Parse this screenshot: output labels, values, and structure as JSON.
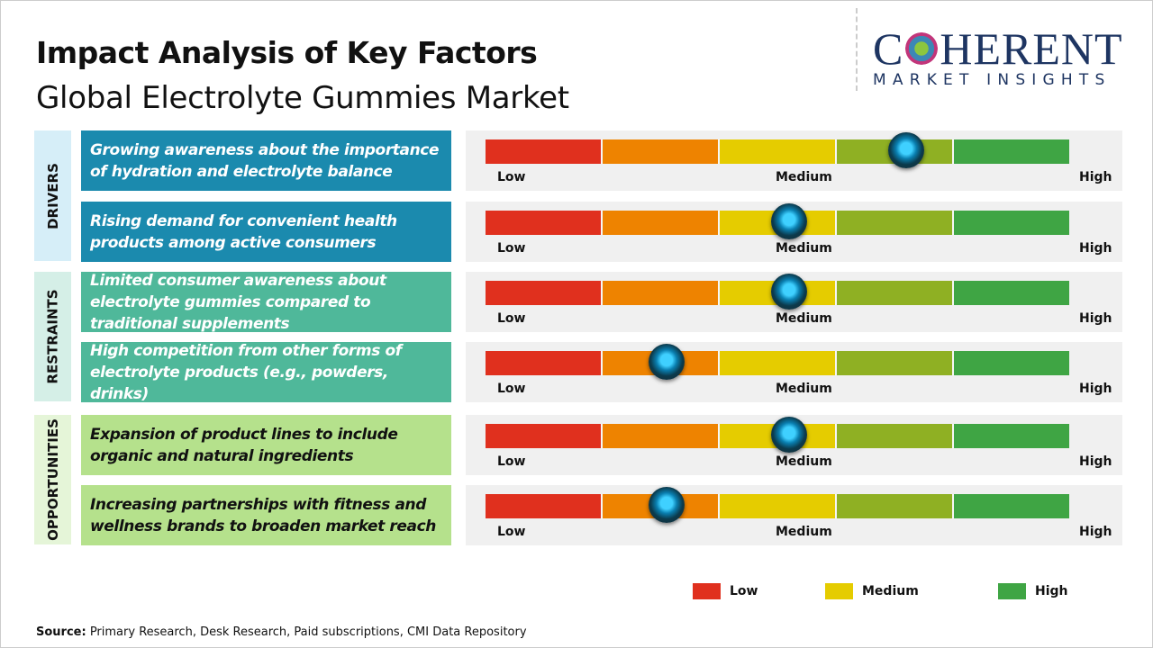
{
  "header": {
    "title": "Impact Analysis of Key Factors",
    "subtitle": "Global Electrolyte Gummies Market"
  },
  "logo": {
    "line1_a": "C",
    "line1_b": "HERENT",
    "line2": "MARKET INSIGHTS"
  },
  "categories": [
    {
      "label": "DRIVERS",
      "bg": "#d6eef8",
      "box": "#1b8aae",
      "text": "#ffffff"
    },
    {
      "label": "RESTRAINTS",
      "bg": "#d5efe7",
      "box": "#4fb89a",
      "text": "#ffffff"
    },
    {
      "label": "OPPORTUNITIES",
      "bg": "#e5f5d8",
      "box": "#b5e18c",
      "text": "#111111"
    }
  ],
  "factors": [
    {
      "text": "Growing awareness about the importance of hydration and electrolyte balance",
      "category": 0,
      "impact": 0.72
    },
    {
      "text": "Rising demand for convenient health products among active consumers",
      "category": 0,
      "impact": 0.52
    },
    {
      "text": "Limited consumer awareness about electrolyte gummies compared to traditional supplements",
      "category": 1,
      "impact": 0.52
    },
    {
      "text": "High competition from other forms of electrolyte products (e.g., powders, drinks)",
      "category": 1,
      "impact": 0.31
    },
    {
      "text": "Expansion of product lines to include organic and natural ingredients",
      "category": 2,
      "impact": 0.52
    },
    {
      "text": "Increasing partnerships with fitness and wellness brands to broaden market reach",
      "category": 2,
      "impact": 0.31
    }
  ],
  "scale": {
    "low": "Low",
    "medium": "Medium",
    "high": "High",
    "colors": [
      "#e0301e",
      "#ee8300",
      "#e5cc00",
      "#8fb023",
      "#3fa544"
    ]
  },
  "legend": [
    {
      "label": "Low",
      "color": "#e0301e"
    },
    {
      "label": "Medium",
      "color": "#e5cc00"
    },
    {
      "label": "High",
      "color": "#3fa544"
    }
  ],
  "source": {
    "label": "Source:",
    "text": " Primary Research, Desk Research, Paid subscriptions, CMI Data Repository"
  }
}
